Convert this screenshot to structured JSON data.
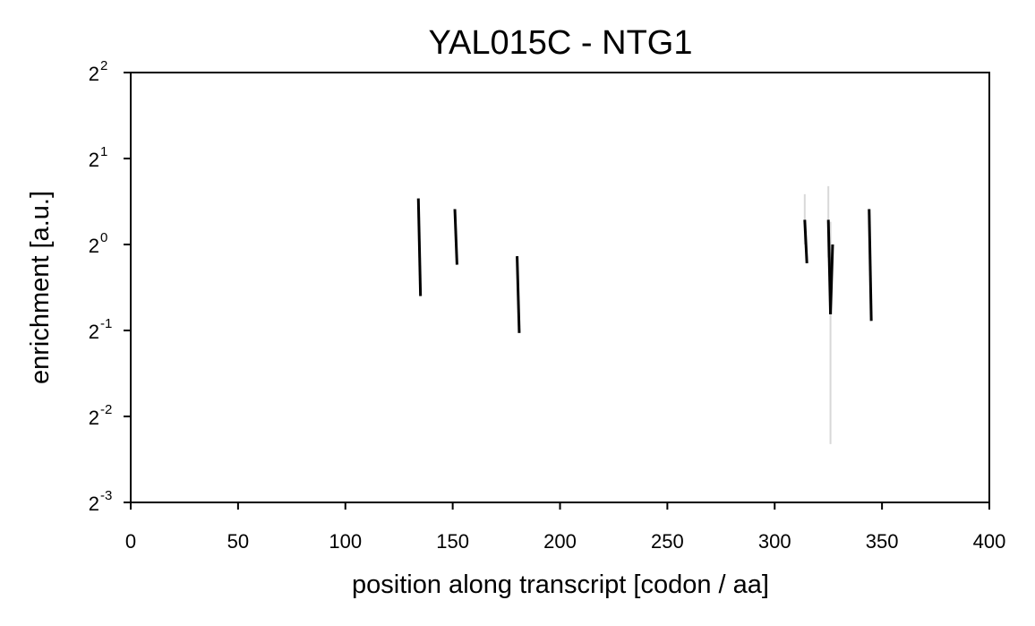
{
  "chart_data": {
    "type": "line",
    "title": "YAL015C - NTG1",
    "xlabel": "position along transcript [codon / aa]",
    "ylabel": "enrichment [a.u.]",
    "xlim": [
      0,
      400
    ],
    "ylim_log2": [
      -3,
      2
    ],
    "y_scale": "log2",
    "xticks": [
      0,
      50,
      100,
      150,
      200,
      250,
      300,
      350,
      400
    ],
    "yticks": [
      {
        "base": "2",
        "exp": "2",
        "log2": 2
      },
      {
        "base": "2",
        "exp": "1",
        "log2": 1
      },
      {
        "base": "2",
        "exp": "0",
        "log2": 0
      },
      {
        "base": "2",
        "exp": "-1",
        "log2": -1
      },
      {
        "base": "2",
        "exp": "-2",
        "log2": -2
      },
      {
        "base": "2",
        "exp": "-3",
        "log2": -3
      }
    ],
    "grid": false,
    "legend": false,
    "line_color": "#000000",
    "band_color": "#d8d8d8",
    "segments": [
      {
        "x": [
          134,
          135
        ],
        "y": [
          1.45,
          0.66
        ]
      },
      {
        "x": [
          151,
          152
        ],
        "y": [
          1.33,
          0.85
        ]
      },
      {
        "x": [
          180,
          181
        ],
        "y": [
          0.91,
          0.49
        ]
      },
      {
        "x": [
          314,
          315
        ],
        "y": [
          1.22,
          0.86
        ]
      },
      {
        "x": [
          325,
          326
        ],
        "y": [
          1.22,
          0.57
        ]
      },
      {
        "x": [
          326,
          327
        ],
        "y": [
          0.57,
          1.0
        ]
      },
      {
        "x": [
          344,
          345
        ],
        "y": [
          1.33,
          0.54
        ]
      }
    ],
    "bands": [
      {
        "x": 314,
        "y": [
          1.5,
          1.0
        ]
      },
      {
        "x": 325,
        "y": [
          1.6,
          0.9
        ]
      },
      {
        "x": 326,
        "y": [
          1.2,
          0.2
        ]
      }
    ]
  }
}
